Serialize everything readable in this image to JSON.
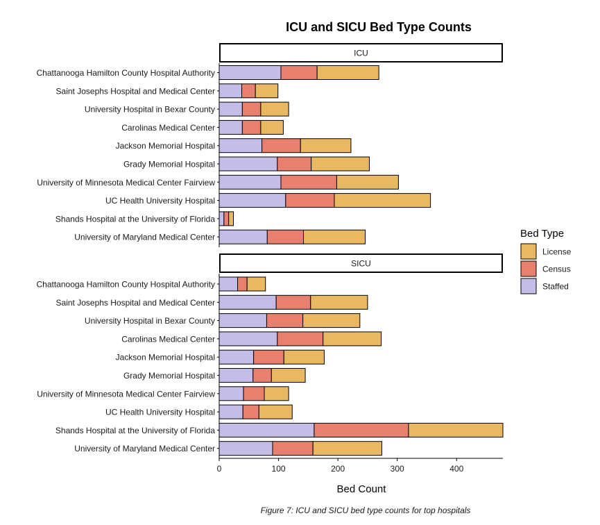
{
  "chart_data": {
    "type": "bar",
    "orientation": "horizontal",
    "stacked": true,
    "title": "ICU and SICU Bed Type Counts",
    "xlabel": "Bed Count",
    "ylabel": "",
    "xlim": [
      0,
      478
    ],
    "x_ticks": [
      0,
      100,
      200,
      300,
      400
    ],
    "caption": "Figure 7: ICU and SICU bed type counts for top hospitals",
    "legend": {
      "title": "Bed Type",
      "position": "right",
      "entries": [
        {
          "name": "License",
          "color": "#E8B862"
        },
        {
          "name": "Census",
          "color": "#E8806F"
        },
        {
          "name": "Staffed",
          "color": "#C5BCE8"
        }
      ]
    },
    "stack_order": [
      "Staffed",
      "Census",
      "License"
    ],
    "colors": {
      "Staffed": "#C5BCE8",
      "Census": "#E8806F",
      "License": "#E8B862"
    },
    "panels": [
      {
        "label": "ICU",
        "categories": [
          "Chattanooga Hamilton County Hospital Authority",
          "Saint Josephs Hospital and Medical Center",
          "University Hospital in Bexar County",
          "Carolinas Medical Center",
          "Jackson Memorial Hospital",
          "Grady Memorial Hospital",
          "University of Minnesota Medical Center Fairview",
          "UC Health University Hospital",
          "Shands Hospital at the University of Florida",
          "University of Maryland Medical Center"
        ],
        "series": [
          {
            "name": "Staffed",
            "values": [
              104,
              38,
              39,
              39,
              72,
              98,
              104,
              112,
              8,
              81
            ]
          },
          {
            "name": "Census",
            "values": [
              61,
              23,
              31,
              31,
              65,
              57,
              94,
              82,
              8,
              61
            ]
          },
          {
            "name": "License",
            "values": [
              104,
              38,
              47,
              38,
              85,
              98,
              104,
              162,
              8,
              104
            ]
          }
        ]
      },
      {
        "label": "SICU",
        "categories": [
          "Chattanooga Hamilton County Hospital Authority",
          "Saint Josephs Hospital and Medical Center",
          "University Hospital in Bexar County",
          "Carolinas Medical Center",
          "Jackson Memorial Hospital",
          "Grady Memorial Hospital",
          "University of Minnesota Medical Center Fairview",
          "UC Health University Hospital",
          "Shands Hospital at the University of Florida",
          "University of Maryland Medical Center"
        ],
        "series": [
          {
            "name": "Staffed",
            "values": [
              31,
              96,
              80,
              98,
              58,
              57,
              41,
              40,
              160,
              90
            ]
          },
          {
            "name": "Census",
            "values": [
              16,
              58,
              61,
              77,
              51,
              31,
              35,
              27,
              159,
              68
            ]
          },
          {
            "name": "License",
            "values": [
              31,
              96,
              96,
              98,
              68,
              57,
              41,
              56,
              159,
              116
            ]
          }
        ]
      }
    ]
  }
}
